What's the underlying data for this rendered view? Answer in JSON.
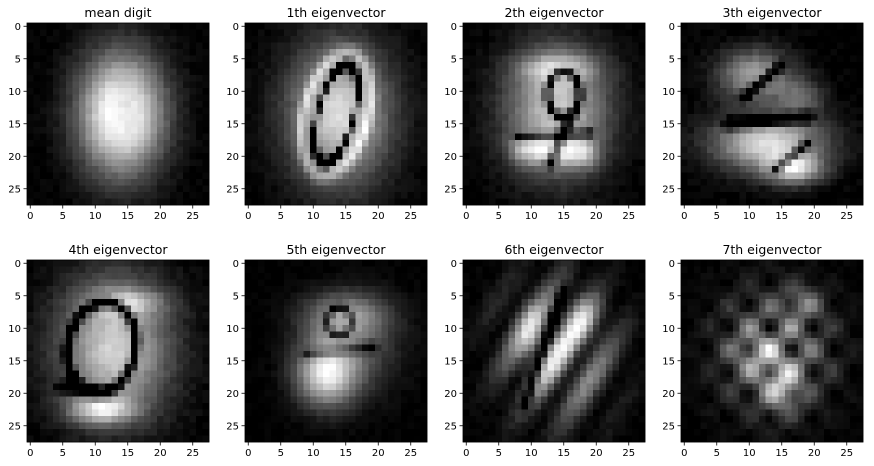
{
  "figure": {
    "panel_count": 8
  },
  "chart_data": [
    {
      "type": "heatmap",
      "title": "mean digit",
      "colormap": "gray",
      "grid": false,
      "xlim": [
        -0.5,
        27.5
      ],
      "ylim": [
        27.5,
        -0.5
      ],
      "xticks": [
        "0",
        "5",
        "10",
        "15",
        "20",
        "25"
      ],
      "yticks": [
        "0",
        "5",
        "10",
        "15",
        "20",
        "25"
      ],
      "pattern": "mean-digit"
    },
    {
      "type": "heatmap",
      "title": "1th eigenvector",
      "colormap": "gray",
      "grid": false,
      "xlim": [
        -0.5,
        27.5
      ],
      "ylim": [
        27.5,
        -0.5
      ],
      "xticks": [
        "0",
        "5",
        "10",
        "15",
        "20",
        "25"
      ],
      "yticks": [
        "0",
        "5",
        "10",
        "15",
        "20",
        "25"
      ],
      "pattern": "zero-like"
    },
    {
      "type": "heatmap",
      "title": "2th eigenvector",
      "colormap": "gray",
      "grid": false,
      "xlim": [
        -0.5,
        27.5
      ],
      "ylim": [
        27.5,
        -0.5
      ],
      "xticks": [
        "0",
        "5",
        "10",
        "15",
        "20",
        "25"
      ],
      "yticks": [
        "0",
        "5",
        "10",
        "15",
        "20",
        "25"
      ],
      "pattern": "nine-like"
    },
    {
      "type": "heatmap",
      "title": "3th eigenvector",
      "colormap": "gray",
      "grid": false,
      "xlim": [
        -0.5,
        27.5
      ],
      "ylim": [
        27.5,
        -0.5
      ],
      "xticks": [
        "0",
        "5",
        "10",
        "15",
        "20",
        "25"
      ],
      "yticks": [
        "0",
        "5",
        "10",
        "15",
        "20",
        "25"
      ],
      "pattern": "three-like"
    },
    {
      "type": "heatmap",
      "title": "4th eigenvector",
      "colormap": "gray",
      "grid": false,
      "xlim": [
        -0.5,
        27.5
      ],
      "ylim": [
        27.5,
        -0.5
      ],
      "xticks": [
        "0",
        "5",
        "10",
        "15",
        "20",
        "25"
      ],
      "yticks": [
        "0",
        "5",
        "10",
        "15",
        "20",
        "25"
      ],
      "pattern": "five-like"
    },
    {
      "type": "heatmap",
      "title": "5th eigenvector",
      "colormap": "gray",
      "grid": false,
      "xlim": [
        -0.5,
        27.5
      ],
      "ylim": [
        27.5,
        -0.5
      ],
      "xticks": [
        "0",
        "5",
        "10",
        "15",
        "20",
        "25"
      ],
      "yticks": [
        "0",
        "5",
        "10",
        "15",
        "20",
        "25"
      ],
      "pattern": "blob-lower"
    },
    {
      "type": "heatmap",
      "title": "6th eigenvector",
      "colormap": "gray",
      "grid": false,
      "xlim": [
        -0.5,
        27.5
      ],
      "ylim": [
        27.5,
        -0.5
      ],
      "xticks": [
        "0",
        "5",
        "10",
        "15",
        "20",
        "25"
      ],
      "yticks": [
        "0",
        "5",
        "10",
        "15",
        "20",
        "25"
      ],
      "pattern": "stripes"
    },
    {
      "type": "heatmap",
      "title": "7th eigenvector",
      "colormap": "gray",
      "grid": false,
      "xlim": [
        -0.5,
        27.5
      ],
      "ylim": [
        27.5,
        -0.5
      ],
      "xticks": [
        "0",
        "5",
        "10",
        "15",
        "20",
        "25"
      ],
      "yticks": [
        "0",
        "5",
        "10",
        "15",
        "20",
        "25"
      ],
      "pattern": "checker"
    }
  ]
}
